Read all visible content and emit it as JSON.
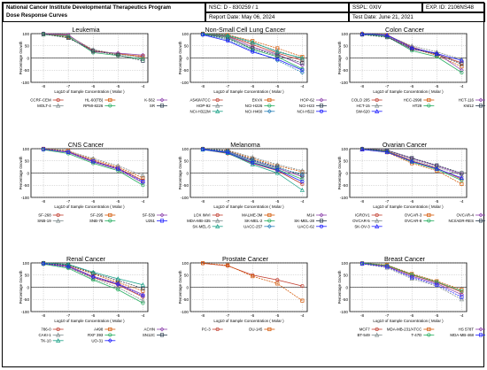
{
  "header": {
    "org_line1": "National Cancer Institute Developmental Therapeutics Program",
    "org_line2": "Dose Response Curves",
    "nsc": "NSC: D - 830259 / 1",
    "report_date": "Report Date: May 06, 2024",
    "sspl": "SSPL: 0XIV",
    "exp_id": "EXP. ID: 2106NS48",
    "test_date": "Test Date: June 21, 2021"
  },
  "chart_data": [
    {
      "type": "line",
      "title": "Leukemia",
      "xlabel": "Log10 of Sample Concentration ( Molar )",
      "ylabel": "Percentage Growth",
      "x": [
        -8,
        -7,
        -6,
        -5,
        -4
      ],
      "xlim": [
        -8.5,
        -3.8
      ],
      "ylim": [
        -100,
        100
      ],
      "yticks": [
        100,
        50,
        0,
        -50,
        -100
      ],
      "series": [
        {
          "name": "CCRF-CEM",
          "color": "#c0392b",
          "values": [
            98,
            93,
            30,
            18,
            5
          ]
        },
        {
          "name": "HL-60(TB)",
          "color": "#d35400",
          "values": [
            98,
            85,
            28,
            15,
            8
          ]
        },
        {
          "name": "K-562",
          "color": "#8e44ad",
          "values": [
            100,
            95,
            25,
            20,
            12
          ]
        },
        {
          "name": "MOLT-4",
          "color": "#7f8c8d",
          "values": [
            96,
            90,
            35,
            15,
            2
          ]
        },
        {
          "name": "RPMI-8226",
          "color": "#27ae60",
          "values": [
            97,
            88,
            22,
            10,
            -5
          ]
        },
        {
          "name": "SR",
          "color": "#2c3e50",
          "values": [
            99,
            82,
            30,
            12,
            -12
          ]
        }
      ],
      "legend_rows": [
        [
          "CCRF-CEM",
          "HL-60(TB)",
          "K-562"
        ],
        [
          "MOLT-4",
          "RPMI-8226",
          "SR"
        ]
      ]
    },
    {
      "type": "line",
      "title": "Non-Small Cell Lung Cancer",
      "xlabel": "Log10 of Sample Concentration ( Molar )",
      "ylabel": "Percentage Growth",
      "x": [
        -8,
        -7,
        -6,
        -5,
        -4
      ],
      "xlim": [
        -8.5,
        -3.8
      ],
      "ylim": [
        -100,
        100
      ],
      "yticks": [
        100,
        50,
        0,
        -50,
        -100
      ],
      "series": [
        {
          "name": "A549/ATCC",
          "color": "#c0392b",
          "values": [
            98,
            90,
            55,
            20,
            -10
          ]
        },
        {
          "name": "EKVX",
          "color": "#d35400",
          "values": [
            100,
            95,
            70,
            40,
            5
          ]
        },
        {
          "name": "HOP-62",
          "color": "#8e44ad",
          "values": [
            97,
            88,
            45,
            15,
            -30
          ]
        },
        {
          "name": "HOP-92",
          "color": "#7f8c8d",
          "values": [
            99,
            92,
            60,
            30,
            -5
          ]
        },
        {
          "name": "NCI-H226",
          "color": "#27ae60",
          "values": [
            96,
            85,
            35,
            5,
            -45
          ]
        },
        {
          "name": "NCI-H23",
          "color": "#2c3e50",
          "values": [
            98,
            80,
            40,
            10,
            -20
          ]
        },
        {
          "name": "NCI-H322M",
          "color": "#16a085",
          "values": [
            99,
            93,
            65,
            25,
            0
          ]
        },
        {
          "name": "NCI-H460",
          "color": "#2980b9",
          "values": [
            97,
            75,
            30,
            -10,
            -60
          ]
        },
        {
          "name": "NCI-H522",
          "color": "#1a1aff",
          "values": [
            95,
            70,
            25,
            -5,
            -50
          ]
        }
      ],
      "legend_rows": [
        [
          "A549/ATCC",
          "EKVX",
          "HOP-62"
        ],
        [
          "HOP-92",
          "NCI-H226",
          "NCI-H23"
        ],
        [
          "NCI-H322M",
          "NCI-H460",
          "NCI-H522"
        ]
      ]
    },
    {
      "type": "line",
      "title": "Colon Cancer",
      "xlabel": "Log10 of Sample Concentration ( Molar )",
      "ylabel": "Percentage Growth",
      "x": [
        -8,
        -7,
        -6,
        -5,
        -4
      ],
      "xlim": [
        -8.5,
        -3.8
      ],
      "ylim": [
        -100,
        100
      ],
      "yticks": [
        100,
        50,
        0,
        -50,
        -100
      ],
      "series": [
        {
          "name": "COLO 205",
          "color": "#c0392b",
          "values": [
            98,
            95,
            45,
            15,
            -20
          ]
        },
        {
          "name": "HCC-2998",
          "color": "#d35400",
          "values": [
            99,
            92,
            40,
            10,
            -35
          ]
        },
        {
          "name": "HCT-116",
          "color": "#8e44ad",
          "values": [
            97,
            90,
            35,
            20,
            -50
          ]
        },
        {
          "name": "HCT-15",
          "color": "#7f8c8d",
          "values": [
            100,
            93,
            50,
            25,
            -5
          ]
        },
        {
          "name": "HT29",
          "color": "#27ae60",
          "values": [
            98,
            88,
            30,
            5,
            -60
          ]
        },
        {
          "name": "KM12",
          "color": "#2c3e50",
          "values": [
            96,
            85,
            38,
            15,
            -25
          ]
        },
        {
          "name": "SW-620",
          "color": "#1a1aff",
          "values": [
            99,
            94,
            42,
            18,
            -10
          ]
        }
      ],
      "legend_rows": [
        [
          "COLO 205",
          "HCC-2998",
          "HCT-116"
        ],
        [
          "HCT-15",
          "HT29",
          "KM12"
        ],
        [
          "SW-620"
        ]
      ]
    },
    {
      "type": "line",
      "title": "CNS Cancer",
      "xlabel": "Log10 of Sample Concentration ( Molar )",
      "ylabel": "Percentage Growth",
      "x": [
        -8,
        -7,
        -6,
        -5,
        -4
      ],
      "xlim": [
        -8.5,
        -3.8
      ],
      "ylim": [
        -100,
        100
      ],
      "yticks": [
        100,
        50,
        0,
        -50,
        -100
      ],
      "series": [
        {
          "name": "SF-268",
          "color": "#c0392b",
          "values": [
            98,
            88,
            50,
            20,
            -30
          ]
        },
        {
          "name": "SF-295",
          "color": "#d35400",
          "values": [
            100,
            92,
            55,
            25,
            -20
          ]
        },
        {
          "name": "SF-539",
          "color": "#8e44ad",
          "values": [
            97,
            85,
            45,
            15,
            -40
          ]
        },
        {
          "name": "SNB-19",
          "color": "#7f8c8d",
          "values": [
            99,
            90,
            60,
            30,
            -10
          ]
        },
        {
          "name": "SNB-75",
          "color": "#27ae60",
          "values": [
            96,
            80,
            40,
            10,
            -50
          ]
        },
        {
          "name": "U251",
          "color": "#1a1aff",
          "values": [
            98,
            86,
            48,
            18,
            -35
          ]
        }
      ],
      "legend_rows": [
        [
          "SF-268",
          "SF-295",
          "SF-539"
        ],
        [
          "SNB-19",
          "SNB-75",
          "U251"
        ]
      ]
    },
    {
      "type": "line",
      "title": "Melanoma",
      "xlabel": "Log10 of Sample Concentration ( Molar )",
      "ylabel": "Percentage Growth",
      "x": [
        -8,
        -7,
        -6,
        -5,
        -4
      ],
      "xlim": [
        -8.5,
        -3.8
      ],
      "ylim": [
        -100,
        100
      ],
      "yticks": [
        100,
        50,
        0,
        -50,
        -100
      ],
      "series": [
        {
          "name": "LOX IMVI",
          "color": "#c0392b",
          "values": [
            97,
            80,
            40,
            10,
            -45
          ]
        },
        {
          "name": "MALME-3M",
          "color": "#d35400",
          "values": [
            99,
            92,
            60,
            30,
            5
          ]
        },
        {
          "name": "M14",
          "color": "#8e44ad",
          "values": [
            98,
            88,
            50,
            20,
            -15
          ]
        },
        {
          "name": "MDA-MB-435",
          "color": "#7f8c8d",
          "values": [
            100,
            94,
            65,
            35,
            10
          ]
        },
        {
          "name": "SK-MEL-2",
          "color": "#27ae60",
          "values": [
            97,
            85,
            45,
            15,
            -25
          ]
        },
        {
          "name": "SK-MEL-28",
          "color": "#2c3e50",
          "values": [
            99,
            90,
            55,
            25,
            -10
          ]
        },
        {
          "name": "SK-MEL-5",
          "color": "#16a085",
          "values": [
            96,
            82,
            35,
            0,
            -70
          ]
        },
        {
          "name": "UACC-257",
          "color": "#2980b9",
          "values": [
            98,
            89,
            52,
            22,
            -5
          ]
        },
        {
          "name": "UACC-62",
          "color": "#1a1aff",
          "values": [
            97,
            84,
            42,
            12,
            -35
          ]
        }
      ],
      "legend_rows": [
        [
          "LOX IMVI",
          "MALME-3M",
          "M14"
        ],
        [
          "MDA-MB-435",
          "SK-MEL-2",
          "SK-MEL-28"
        ],
        [
          "SK-MEL-5",
          "UACC-257",
          "UACC-62"
        ]
      ]
    },
    {
      "type": "line",
      "title": "Ovarian Cancer",
      "xlabel": "Log10 of Sample Concentration ( Molar )",
      "ylabel": "Percentage Growth",
      "x": [
        -8,
        -7,
        -6,
        -5,
        -4
      ],
      "xlim": [
        -8.5,
        -3.8
      ],
      "ylim": [
        -100,
        100
      ],
      "yticks": [
        100,
        50,
        0,
        -50,
        -100
      ],
      "series": [
        {
          "name": "IGROV1",
          "color": "#c0392b",
          "values": [
            98,
            90,
            50,
            20,
            -25
          ]
        },
        {
          "name": "OVCAR-3",
          "color": "#d35400",
          "values": [
            97,
            85,
            40,
            10,
            -45
          ]
        },
        {
          "name": "OVCAR-4",
          "color": "#8e44ad",
          "values": [
            100,
            93,
            60,
            30,
            -5
          ]
        },
        {
          "name": "OVCAR-5",
          "color": "#7f8c8d",
          "values": [
            99,
            92,
            55,
            25,
            -10
          ]
        },
        {
          "name": "OVCAR-8",
          "color": "#27ae60",
          "values": [
            98,
            88,
            45,
            15,
            -30
          ]
        },
        {
          "name": "NCI/ADR-RES",
          "color": "#2c3e50",
          "values": [
            99,
            94,
            62,
            32,
            0
          ]
        },
        {
          "name": "SK-OV-3",
          "color": "#1a1aff",
          "values": [
            97,
            86,
            48,
            18,
            -20
          ]
        }
      ],
      "legend_rows": [
        [
          "IGROV1",
          "OVCAR-3",
          "OVCAR-4"
        ],
        [
          "OVCAR-5",
          "OVCAR-8",
          "NCI/ADR-RES"
        ],
        [
          "SK-OV-3"
        ]
      ]
    },
    {
      "type": "line",
      "title": "Renal Cancer",
      "xlabel": "Log10 of Sample Concentration ( Molar )",
      "ylabel": "Percentage Growth",
      "x": [
        -8,
        -7,
        -6,
        -5,
        -4
      ],
      "xlim": [
        -8.5,
        -3.8
      ],
      "ylim": [
        -100,
        100
      ],
      "yticks": [
        100,
        50,
        0,
        -50,
        -100
      ],
      "series": [
        {
          "name": "786-0",
          "color": "#c0392b",
          "values": [
            97,
            85,
            40,
            10,
            -40
          ]
        },
        {
          "name": "A498",
          "color": "#d35400",
          "values": [
            99,
            90,
            55,
            20,
            -15
          ]
        },
        {
          "name": "ACHN",
          "color": "#8e44ad",
          "values": [
            98,
            88,
            45,
            15,
            -30
          ]
        },
        {
          "name": "CAKI-1",
          "color": "#7f8c8d",
          "values": [
            96,
            82,
            35,
            0,
            -55
          ]
        },
        {
          "name": "RXF 393",
          "color": "#27ae60",
          "values": [
            95,
            78,
            30,
            -10,
            -65
          ]
        },
        {
          "name": "SN12C",
          "color": "#2c3e50",
          "values": [
            99,
            92,
            58,
            28,
            -5
          ]
        },
        {
          "name": "TK-10",
          "color": "#16a085",
          "values": [
            100,
            94,
            62,
            35,
            10
          ]
        },
        {
          "name": "UO-31",
          "color": "#1a1aff",
          "values": [
            97,
            84,
            42,
            12,
            -35
          ]
        }
      ],
      "legend_rows": [
        [
          "786-0",
          "A498",
          "ACHN"
        ],
        [
          "CAKI-1",
          "RXF 393",
          "SN12C"
        ],
        [
          "TK-10",
          "UO-31"
        ]
      ]
    },
    {
      "type": "line",
      "title": "Prostate Cancer",
      "xlabel": "Log10 of Sample Concentration ( Molar )",
      "ylabel": "Percentage Growth",
      "x": [
        -8,
        -7,
        -6,
        -5,
        -4
      ],
      "xlim": [
        -8.5,
        -3.8
      ],
      "ylim": [
        -100,
        100
      ],
      "yticks": [
        100,
        50,
        0,
        -50,
        -100
      ],
      "series": [
        {
          "name": "PC-3",
          "color": "#c0392b",
          "values": [
            98,
            88,
            50,
            30,
            5
          ]
        },
        {
          "name": "DU-145",
          "color": "#d35400",
          "values": [
            99,
            90,
            45,
            15,
            -55
          ]
        }
      ],
      "legend_rows": [
        [
          "PC-3",
          "DU-145"
        ]
      ]
    },
    {
      "type": "line",
      "title": "Breast Cancer",
      "xlabel": "Log10 of Sample Concentration ( Molar )",
      "ylabel": "Percentage Growth",
      "x": [
        -8,
        -7,
        -6,
        -5,
        -4
      ],
      "xlim": [
        -8.5,
        -3.8
      ],
      "ylim": [
        -100,
        100
      ],
      "yticks": [
        100,
        50,
        0,
        -50,
        -100
      ],
      "series": [
        {
          "name": "MCF7",
          "color": "#c0392b",
          "values": [
            98,
            88,
            50,
            20,
            -20
          ]
        },
        {
          "name": "MDA-MB-231/ATCC",
          "color": "#d35400",
          "values": [
            99,
            92,
            55,
            25,
            -10
          ]
        },
        {
          "name": "HS 578T",
          "color": "#8e44ad",
          "values": [
            97,
            85,
            45,
            15,
            -30
          ]
        },
        {
          "name": "BT-549",
          "color": "#7f8c8d",
          "values": [
            96,
            80,
            35,
            5,
            -50
          ]
        },
        {
          "name": "T-47D",
          "color": "#27ae60",
          "values": [
            99,
            90,
            52,
            22,
            -15
          ]
        },
        {
          "name": "MDA-MB-468",
          "color": "#1a1aff",
          "values": [
            97,
            84,
            40,
            10,
            -40
          ]
        }
      ],
      "legend_rows": [
        [
          "MCF7",
          "MDA-MB-231/ATCC",
          "HS 578T"
        ],
        [
          "BT-549",
          "T-47D",
          "MDA-MB-468"
        ]
      ]
    }
  ]
}
